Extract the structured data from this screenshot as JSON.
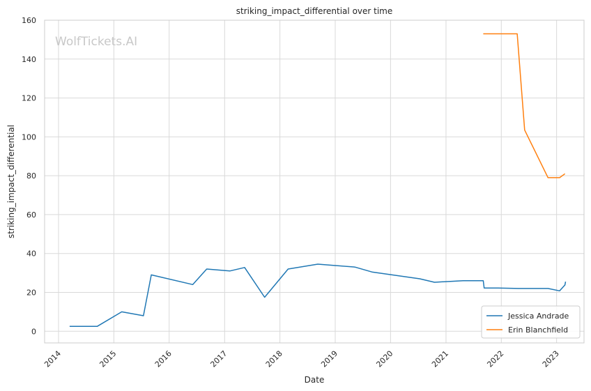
{
  "chart_data": {
    "type": "line",
    "title": "striking_impact_differential over time",
    "xlabel": "Date",
    "ylabel": "striking_impact_differential",
    "watermark": "WolfTickets.AI",
    "xlim": [
      "2013-10-01",
      "2023-07-01"
    ],
    "ylim": [
      -6,
      160
    ],
    "x_ticks": [
      "2014",
      "2015",
      "2016",
      "2017",
      "2018",
      "2019",
      "2020",
      "2021",
      "2022",
      "2023"
    ],
    "y_ticks": [
      0,
      20,
      40,
      60,
      80,
      100,
      120,
      140,
      160
    ],
    "grid": true,
    "legend_position": "lower-right",
    "series": [
      {
        "name": "Jessica Andrade",
        "color": "#1f77b4",
        "points": [
          [
            "2014-03-15",
            2.5
          ],
          [
            "2014-09-13",
            2.5
          ],
          [
            "2015-02-22",
            10
          ],
          [
            "2015-07-15",
            8
          ],
          [
            "2015-09-05",
            29
          ],
          [
            "2016-06-05",
            24
          ],
          [
            "2016-09-05",
            32
          ],
          [
            "2017-02-04",
            31
          ],
          [
            "2017-05-13",
            32.8
          ],
          [
            "2017-09-22",
            17.5
          ],
          [
            "2018-02-24",
            32
          ],
          [
            "2018-09-08",
            34.5
          ],
          [
            "2019-05-11",
            33
          ],
          [
            "2019-08-31",
            30.5
          ],
          [
            "2020-07-12",
            27
          ],
          [
            "2020-10-17",
            25.2
          ],
          [
            "2021-04-24",
            26
          ],
          [
            "2021-09-04",
            26
          ],
          [
            "2021-09-10",
            22.2
          ],
          [
            "2021-12-11",
            22.2
          ],
          [
            "2022-04-23",
            22
          ],
          [
            "2022-11-05",
            22
          ],
          [
            "2023-01-21",
            20.8
          ],
          [
            "2023-02-25",
            23.8
          ],
          [
            "2023-03-01",
            25.5
          ]
        ]
      },
      {
        "name": "Erin Blanchfield",
        "color": "#ff7f0e",
        "points": [
          [
            "2021-09-04",
            153
          ],
          [
            "2022-04-16",
            153
          ],
          [
            "2022-06-04",
            103.5
          ],
          [
            "2022-11-05",
            79
          ],
          [
            "2023-01-21",
            79
          ],
          [
            "2023-02-25",
            81
          ]
        ]
      }
    ]
  }
}
